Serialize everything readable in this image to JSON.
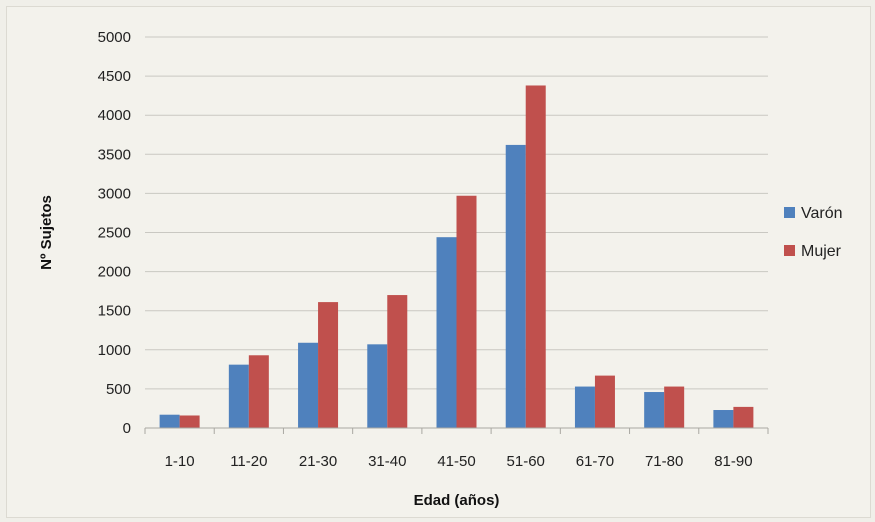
{
  "chart_data": {
    "type": "bar",
    "title": "",
    "xlabel": "Edad (años)",
    "ylabel": "Nº Sujetos",
    "ylim": [
      0,
      5000
    ],
    "yticks": [
      0,
      500,
      1000,
      1500,
      2000,
      2500,
      3000,
      3500,
      4000,
      4500,
      5000
    ],
    "grid": true,
    "legend_position": "right",
    "categories": [
      "1-10",
      "11-20",
      "21-30",
      "31-40",
      "41-50",
      "51-60",
      "61-70",
      "71-80",
      "81-90"
    ],
    "series": [
      {
        "name": "Varón",
        "color": "#4f81bd",
        "values": [
          170,
          810,
          1090,
          1070,
          2440,
          3620,
          530,
          460,
          230
        ]
      },
      {
        "name": "Mujer",
        "color": "#c0504d",
        "values": [
          160,
          930,
          1610,
          1700,
          2970,
          4380,
          670,
          530,
          270
        ]
      }
    ]
  }
}
